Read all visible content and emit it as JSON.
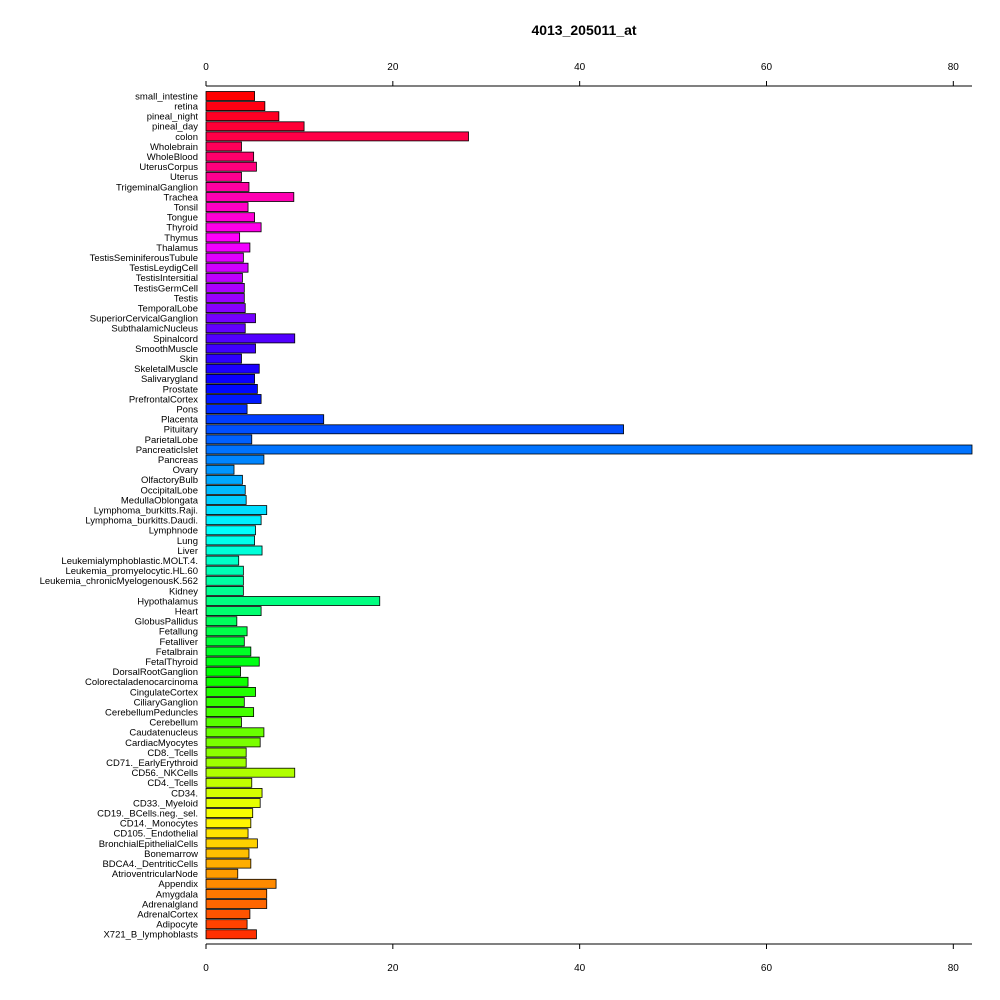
{
  "chart_data": {
    "type": "bar",
    "orientation": "horizontal",
    "title": "4013_205011_at",
    "xlim": [
      0,
      82
    ],
    "xticks": [
      0,
      20,
      40,
      60,
      80
    ],
    "axes": [
      "top",
      "bottom"
    ],
    "grid": false,
    "categories": [
      "small_intestine",
      "retina",
      "pineal_night",
      "pineal_day",
      "colon",
      "Wholebrain",
      "WholeBlood",
      "UterusCorpus",
      "Uterus",
      "TrigeminalGanglion",
      "Trachea",
      "Tonsil",
      "Tongue",
      "Thyroid",
      "Thymus",
      "Thalamus",
      "TestisSeminiferousTubule",
      "TestisLeydigCell",
      "TestisIntersitial",
      "TestisGermCell",
      "Testis",
      "TemporalLobe",
      "SuperiorCervicalGanglion",
      "SubthalamicNucleus",
      "Spinalcord",
      "SmoothMuscle",
      "Skin",
      "SkeletalMuscle",
      "Salivarygland",
      "Prostate",
      "PrefrontalCortex",
      "Pons",
      "Placenta",
      "Pituitary",
      "ParietalLobe",
      "PancreaticIslet",
      "Pancreas",
      "Ovary",
      "OlfactoryBulb",
      "OccipitalLobe",
      "MedullaOblongata",
      "Lymphoma_burkitts.Raji.",
      "Lymphoma_burkitts.Daudi.",
      "Lymphnode",
      "Lung",
      "Liver",
      "Leukemialymphoblastic.MOLT.4.",
      "Leukemia_promyelocytic.HL.60",
      "Leukemia_chronicMyelogenousK.562",
      "Kidney",
      "Hypothalamus",
      "Heart",
      "GlobusPallidus",
      "Fetallung",
      "Fetalliver",
      "Fetalbrain",
      "FetalThyroid",
      "DorsalRootGanglion",
      "Colorectaladenocarcinoma",
      "CingulateCortex",
      "CiliaryGanglion",
      "CerebellumPeduncles",
      "Cerebellum",
      "Caudatenucleus",
      "CardiacMyocytes",
      "CD8._Tcells",
      "CD71._EarlyErythroid",
      "CD56._NKCells",
      "CD4._Tcells",
      "CD34.",
      "CD33._Myeloid",
      "CD19._BCells.neg._sel.",
      "CD14._Monocytes",
      "CD105._Endothelial",
      "BronchialEpithelialCells",
      "Bonemarrow",
      "BDCA4._DentriticCells",
      "AtrioventricularNode",
      "Appendix",
      "Amygdala",
      "Adrenalgland",
      "AdrenalCortex",
      "Adipocyte",
      "X721_B_lymphoblasts"
    ],
    "values": [
      5.2,
      6.3,
      7.8,
      10.5,
      28.1,
      3.8,
      5.1,
      5.4,
      3.8,
      4.6,
      9.4,
      4.5,
      5.2,
      5.9,
      3.6,
      4.7,
      4.0,
      4.5,
      3.9,
      4.1,
      4.1,
      4.2,
      5.3,
      4.2,
      9.5,
      5.3,
      3.8,
      5.7,
      5.2,
      5.5,
      5.9,
      4.4,
      12.6,
      44.7,
      4.9,
      82.0,
      6.2,
      3.0,
      3.9,
      4.2,
      4.3,
      6.5,
      5.9,
      5.3,
      5.2,
      6.0,
      3.5,
      4.0,
      4.0,
      4.0,
      18.6,
      5.9,
      3.3,
      4.4,
      4.1,
      4.8,
      5.7,
      3.7,
      4.5,
      5.3,
      4.1,
      5.1,
      3.8,
      6.2,
      5.8,
      4.3,
      4.3,
      9.5,
      4.9,
      6.0,
      5.8,
      5.0,
      4.8,
      4.5,
      5.5,
      4.6,
      4.8,
      3.4,
      7.5,
      6.5,
      6.5,
      4.7,
      4.4,
      5.4
    ],
    "color_scale": "rainbow"
  }
}
